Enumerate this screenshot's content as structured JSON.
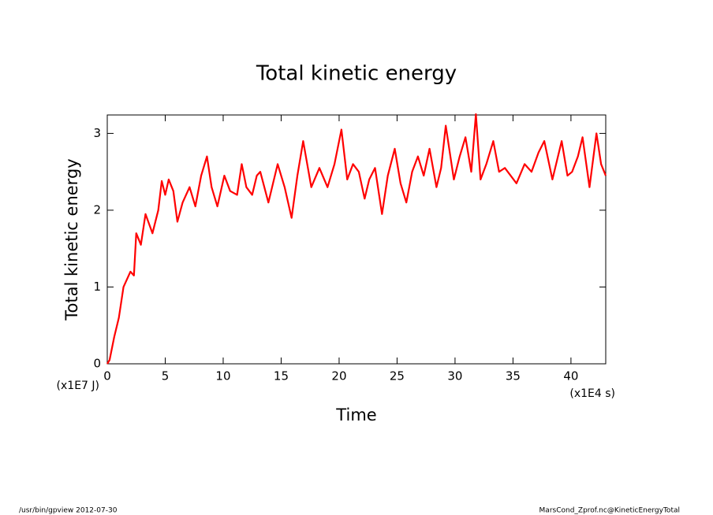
{
  "chart_data": {
    "type": "line",
    "title": "Total kinetic energy",
    "xlabel": "Time",
    "ylabel": "Total kinetic energy",
    "xunit": "(x1E4 s)",
    "yunit": "(x1E7 J)",
    "footer_left": "/usr/bin/gpview  2012-07-30",
    "footer_right": "MarsCond_Zprof.nc@KineticEnergyTotal",
    "x": [
      0,
      0.2,
      0.6,
      1.0,
      1.4,
      2.0,
      2.3,
      2.5,
      2.9,
      3.3,
      3.9,
      4.4,
      4.7,
      5.0,
      5.3,
      5.7,
      6.05,
      6.5,
      7.1,
      7.6,
      8.1,
      8.6,
      9.0,
      9.5,
      10.1,
      10.6,
      11.2,
      11.6,
      12.0,
      12.5,
      12.9,
      13.2,
      13.9,
      14.3,
      14.7,
      15.3,
      15.9,
      16.4,
      16.9,
      17.6,
      18.3,
      19.0,
      19.6,
      20.2,
      20.7,
      21.2,
      21.7,
      22.2,
      22.6,
      23.1,
      23.7,
      24.2,
      24.8,
      25.3,
      25.8,
      26.3,
      26.8,
      27.3,
      27.8,
      28.4,
      28.8,
      29.2,
      29.9,
      30.4,
      30.9,
      31.4,
      31.8,
      32.2,
      32.7,
      33.3,
      33.8,
      34.3,
      34.8,
      35.3,
      36.0,
      36.6,
      37.2,
      37.7,
      38.4,
      38.8,
      39.2,
      39.7,
      40.1,
      40.6,
      41.0,
      41.6,
      42.2,
      42.6,
      43.0
    ],
    "series": [
      {
        "name": "Total kinetic energy",
        "color": "#ff0000",
        "values": [
          0,
          0.05,
          0.35,
          0.6,
          1.0,
          1.2,
          1.15,
          1.7,
          1.55,
          1.95,
          1.7,
          2.0,
          2.38,
          2.2,
          2.4,
          2.25,
          1.85,
          2.1,
          2.3,
          2.05,
          2.45,
          2.7,
          2.3,
          2.05,
          2.45,
          2.25,
          2.2,
          2.6,
          2.3,
          2.2,
          2.45,
          2.5,
          2.1,
          2.35,
          2.6,
          2.3,
          1.9,
          2.45,
          2.9,
          2.3,
          2.55,
          2.3,
          2.6,
          3.05,
          2.4,
          2.6,
          2.5,
          2.15,
          2.4,
          2.55,
          1.95,
          2.45,
          2.8,
          2.35,
          2.1,
          2.5,
          2.7,
          2.45,
          2.8,
          2.3,
          2.55,
          3.1,
          2.4,
          2.7,
          2.95,
          2.5,
          3.25,
          2.4,
          2.6,
          2.9,
          2.5,
          2.55,
          2.45,
          2.35,
          2.6,
          2.5,
          2.75,
          2.9,
          2.4,
          2.65,
          2.9,
          2.45,
          2.5,
          2.7,
          2.95,
          2.3,
          3.0,
          2.6,
          2.45
        ]
      }
    ],
    "xlim": [
      0,
      43
    ],
    "xticks": [
      0,
      5,
      10,
      15,
      20,
      25,
      30,
      35,
      40
    ],
    "ylim": [
      0,
      3.24
    ],
    "yticks": [
      0,
      1,
      2,
      3
    ]
  }
}
